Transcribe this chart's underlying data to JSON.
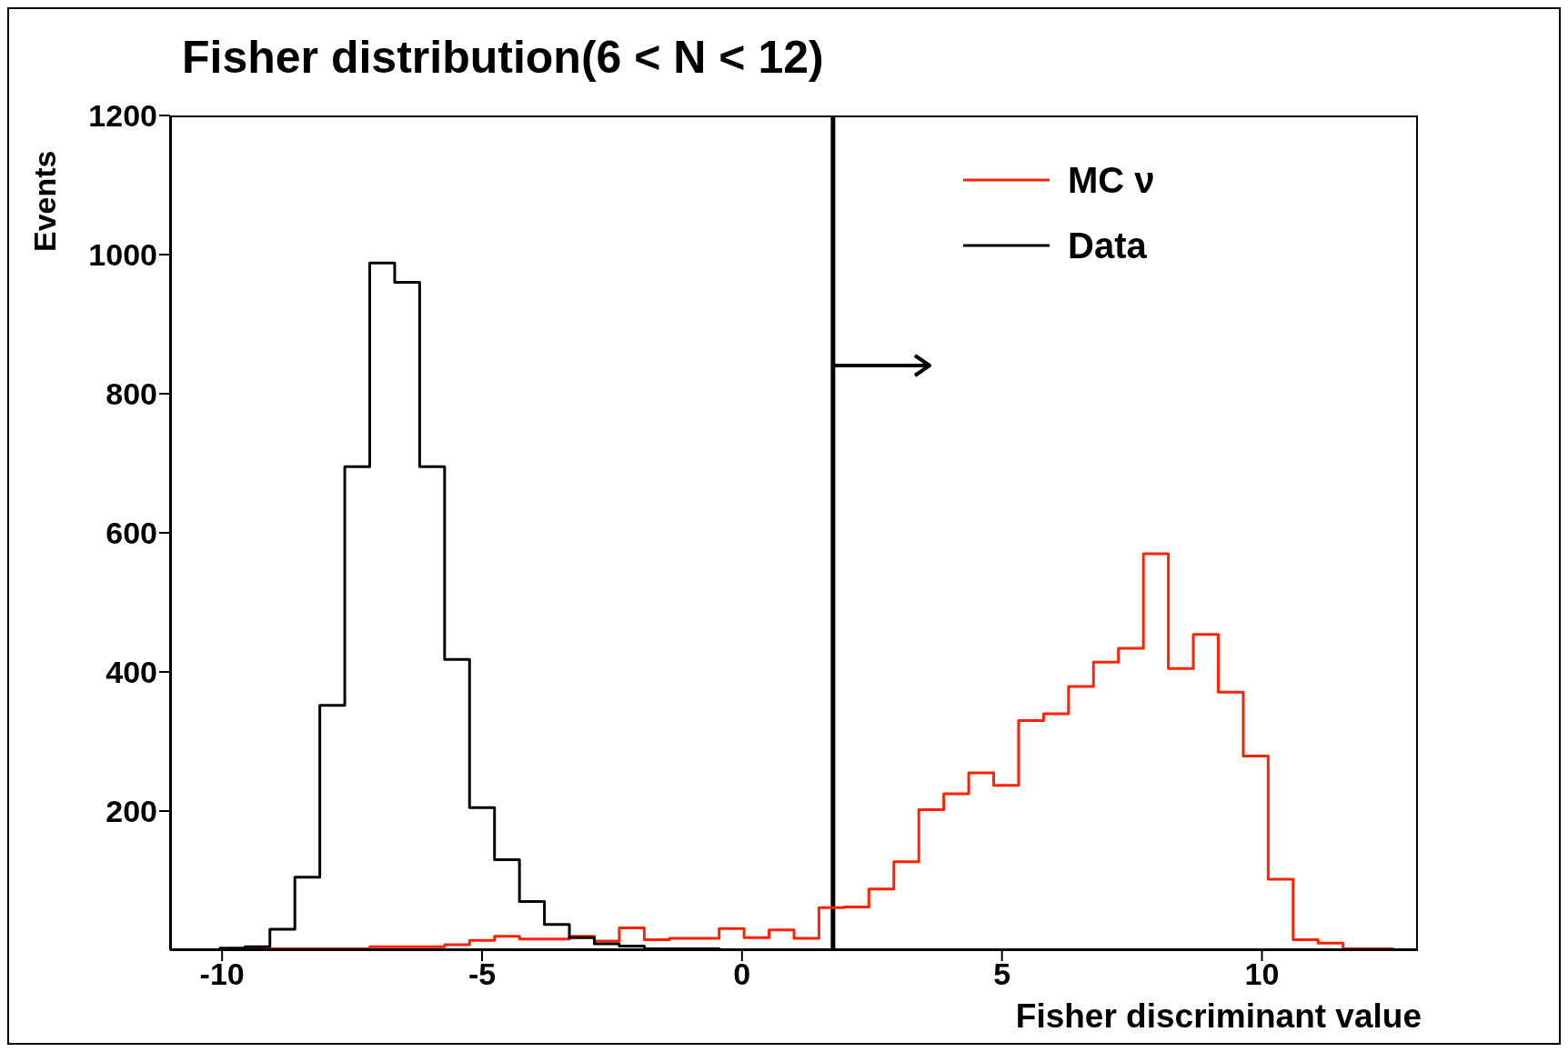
{
  "chart_data": {
    "type": "histogram",
    "title": "Fisher distribution(6 < N < 12)",
    "xlabel": "Fisher discriminant value",
    "ylabel": "Events",
    "bins": [
      -11,
      -10.52,
      -10.04,
      -9.56,
      -9.08,
      -8.6,
      -8.12,
      -7.64,
      -7.16,
      -6.68,
      -6.2,
      -5.72,
      -5.24,
      -4.76,
      -4.28,
      -3.8,
      -3.32,
      -2.84,
      -2.36,
      -1.88,
      -1.4,
      -0.92,
      -0.44,
      0.04,
      0.52,
      1,
      1.48,
      1.96,
      2.44,
      2.92,
      3.4,
      3.88,
      4.36,
      4.84,
      5.32,
      5.8,
      6.28,
      6.76,
      7.24,
      7.72,
      8.2,
      8.68,
      9.16,
      9.64,
      10.12,
      10.6,
      11.08,
      11.56,
      12.04,
      12.52,
      13
    ],
    "series": [
      {
        "name": "MC ν",
        "color": "#ff2200",
        "values": [
          0,
          0,
          2,
          2,
          2,
          2,
          2,
          2,
          5,
          5,
          5,
          8,
          14,
          20,
          16,
          16,
          20,
          13,
          32,
          15,
          17,
          17,
          31,
          18,
          29,
          17,
          61,
          62,
          88,
          127,
          202,
          225,
          255,
          237,
          330,
          340,
          379,
          414,
          434,
          570,
          405,
          454,
          371,
          279,
          102,
          15,
          10,
          2,
          2,
          0
        ]
      },
      {
        "name": "Data",
        "color": "#000000",
        "values": [
          0,
          0,
          3,
          5,
          30,
          105,
          352,
          695,
          988,
          960,
          695,
          418,
          205,
          130,
          70,
          37,
          18,
          9,
          6,
          2,
          2,
          2,
          0,
          0,
          0,
          0,
          0,
          0,
          0,
          0,
          0,
          0,
          0,
          0,
          0,
          0,
          0,
          0,
          0,
          0,
          0,
          0,
          0,
          0,
          0,
          0,
          0,
          0,
          0,
          0
        ]
      }
    ],
    "xlim": [
      -11,
      13
    ],
    "xticks": [
      -10,
      -5,
      0,
      5,
      10
    ],
    "ylim": [
      0,
      1200
    ],
    "yticks": [
      200,
      400,
      600,
      800,
      1000,
      1200
    ],
    "ref_lines": [
      {
        "axis": "x",
        "value": 1.75,
        "color": "#000000"
      }
    ],
    "legend": "top right",
    "grid": false
  }
}
